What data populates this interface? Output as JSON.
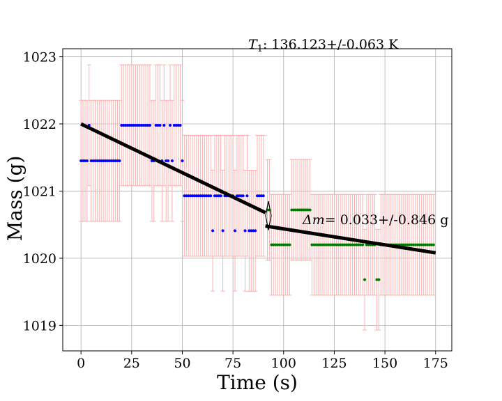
{
  "chart_data": {
    "type": "scatter",
    "xlabel": "Time (s)",
    "ylabel": "Mass (g)",
    "xlim": [
      -9,
      183
    ],
    "ylim": [
      1018.62,
      1023.12
    ],
    "xticks": [
      0,
      25,
      50,
      75,
      100,
      125,
      150,
      175
    ],
    "yticks": [
      1019,
      1020,
      1021,
      1022,
      1023
    ],
    "grid": true,
    "colors": {
      "before": "#0000ff",
      "after": "#007700",
      "errorbar": "#ffb0b0",
      "fit": "#000000"
    },
    "annotations": {
      "temperature": {
        "symbol": "T",
        "subscript": "1",
        "text": ": 136.123+/-0.063 K"
      },
      "delta_m": {
        "prefix": "Δm",
        "text": "=  0.033+/-0.846 g"
      },
      "arrow": {
        "x": 92.5,
        "y_from": 1020.6,
        "y_to": 1020.5
      }
    },
    "fit_lines": [
      {
        "name": "before",
        "x": [
          0,
          91
        ],
        "y": [
          1022.0,
          1020.68
        ]
      },
      {
        "name": "after",
        "x": [
          91,
          175
        ],
        "y": [
          1020.48,
          1020.08
        ]
      }
    ],
    "series": [
      {
        "name": "before",
        "x_start": 0,
        "x_step": 1,
        "y": [
          1021.45,
          1021.45,
          1021.45,
          1021.45,
          1021.98,
          1021.45,
          1021.45,
          1021.45,
          1021.45,
          1021.45,
          1021.45,
          1021.45,
          1021.45,
          1021.45,
          1021.45,
          1021.45,
          1021.45,
          1021.45,
          1021.45,
          1021.45,
          1021.98,
          1021.98,
          1021.98,
          1021.98,
          1021.98,
          1021.98,
          1021.98,
          1021.98,
          1021.98,
          1021.98,
          1021.98,
          1021.98,
          1021.98,
          1021.98,
          1021.98,
          1021.45,
          1021.45,
          1021.98,
          1021.98,
          1021.98,
          1021.45,
          1021.98,
          1021.45,
          1021.45,
          1021.98,
          1021.45,
          1021.98,
          1021.98,
          1021.98,
          1021.98,
          1021.45,
          1020.93,
          1020.93,
          1020.93,
          1020.93,
          1020.93,
          1020.93,
          1020.93,
          1020.93,
          1020.93,
          1020.93,
          1020.93,
          1020.93,
          1020.93,
          1020.93,
          1020.41,
          1020.93,
          1020.93,
          1020.93,
          1020.93,
          1020.41,
          1020.93,
          1020.93,
          1020.93,
          1020.93,
          1020.93,
          1020.41,
          1020.93,
          1020.93,
          1020.93,
          1020.93,
          1020.41,
          1020.93,
          1020.41,
          1020.41,
          1020.41,
          1020.41,
          1020.93,
          1020.93,
          1020.93,
          1020.93
        ],
        "err": [
          0.9,
          0.9,
          0.9,
          0.9,
          0.9,
          0.9,
          0.9,
          0.9,
          0.9,
          0.9,
          0.9,
          0.9,
          0.9,
          0.9,
          0.9,
          0.9,
          0.9,
          0.9,
          0.9,
          0.9,
          0.9,
          0.9,
          0.9,
          0.9,
          0.9,
          0.9,
          0.9,
          0.9,
          0.9,
          0.9,
          0.9,
          0.9,
          0.9,
          0.9,
          0.9,
          0.9,
          0.9,
          0.9,
          0.9,
          0.9,
          0.9,
          0.9,
          0.9,
          0.9,
          0.9,
          0.9,
          0.9,
          0.9,
          0.9,
          0.9,
          0.9,
          0.9,
          0.9,
          0.9,
          0.9,
          0.9,
          0.9,
          0.9,
          0.9,
          0.9,
          0.9,
          0.9,
          0.9,
          0.9,
          0.9,
          0.9,
          0.9,
          0.9,
          0.9,
          0.9,
          0.9,
          0.9,
          0.9,
          0.9,
          0.9,
          0.9,
          0.9,
          0.9,
          0.9,
          0.9,
          0.9,
          0.9,
          0.9,
          0.9,
          0.9,
          0.9,
          0.9,
          0.9,
          0.9,
          0.9,
          0.9
        ]
      },
      {
        "name": "after",
        "x_start": 92,
        "x_step": 1,
        "y": [
          1020.72,
          1020.72,
          1020.2,
          1020.2,
          1020.2,
          1020.2,
          1020.2,
          1020.2,
          1020.2,
          1020.2,
          1020.2,
          1020.2,
          1020.72,
          1020.72,
          1020.72,
          1020.72,
          1020.72,
          1020.72,
          1020.72,
          1020.72,
          1020.72,
          1020.72,
          1020.2,
          1020.2,
          1020.2,
          1020.2,
          1020.2,
          1020.2,
          1020.2,
          1020.2,
          1020.2,
          1020.2,
          1020.2,
          1020.2,
          1020.2,
          1020.2,
          1020.2,
          1020.2,
          1020.2,
          1020.2,
          1020.2,
          1020.2,
          1020.2,
          1020.2,
          1020.2,
          1020.2,
          1020.2,
          1020.2,
          1019.68,
          1020.2,
          1020.2,
          1020.2,
          1020.2,
          1020.2,
          1019.68,
          1019.68,
          1020.2,
          1020.2,
          1020.2,
          1020.2,
          1020.2,
          1020.2,
          1020.2,
          1020.2,
          1020.2,
          1020.2,
          1020.2,
          1020.2,
          1020.2,
          1020.2,
          1020.2,
          1020.2,
          1020.2,
          1020.2,
          1020.2,
          1020.2,
          1020.2,
          1020.2,
          1020.2,
          1020.2,
          1020.2,
          1020.2,
          1020.2
        ],
        "err": [
          0.75,
          0.75,
          0.75,
          0.75,
          0.75,
          0.75,
          0.75,
          0.75,
          0.75,
          0.75,
          0.75,
          0.75,
          0.75,
          0.75,
          0.75,
          0.75,
          0.75,
          0.75,
          0.75,
          0.75,
          0.75,
          0.75,
          0.75,
          0.75,
          0.75,
          0.75,
          0.75,
          0.75,
          0.75,
          0.75,
          0.75,
          0.75,
          0.75,
          0.75,
          0.75,
          0.75,
          0.75,
          0.75,
          0.75,
          0.75,
          0.75,
          0.75,
          0.75,
          0.75,
          0.75,
          0.75,
          0.75,
          0.75,
          0.75,
          0.75,
          0.75,
          0.75,
          0.75,
          0.75,
          0.75,
          0.75,
          0.75,
          0.75,
          0.75,
          0.75,
          0.75,
          0.75,
          0.75,
          0.75,
          0.75,
          0.75,
          0.75,
          0.75,
          0.75,
          0.75,
          0.75,
          0.75,
          0.75,
          0.75,
          0.75,
          0.75,
          0.75,
          0.75,
          0.75,
          0.75,
          0.75,
          0.75,
          0.75
        ]
      }
    ]
  }
}
